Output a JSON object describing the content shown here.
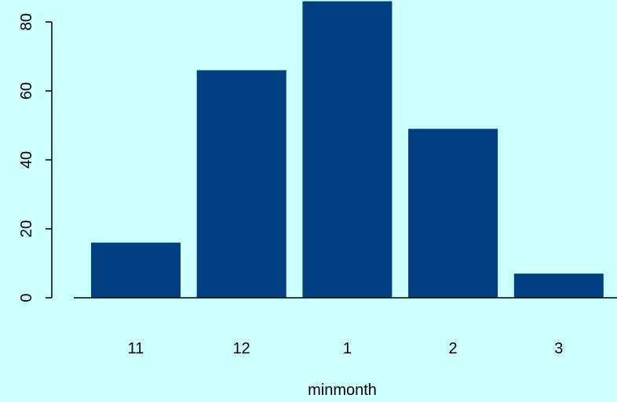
{
  "colors": {
    "background": "#ccffff",
    "bar": "#003f7f",
    "axis": "#000000"
  },
  "chart_data": {
    "type": "bar",
    "categories": [
      "11",
      "12",
      "1",
      "2",
      "3"
    ],
    "values": [
      16,
      66,
      86,
      49,
      7
    ],
    "title": "",
    "xlabel": "minmonth",
    "ylabel": "",
    "ylim": [
      0,
      86
    ],
    "yticks": [
      0,
      20,
      40,
      60,
      80
    ],
    "grid": false
  }
}
